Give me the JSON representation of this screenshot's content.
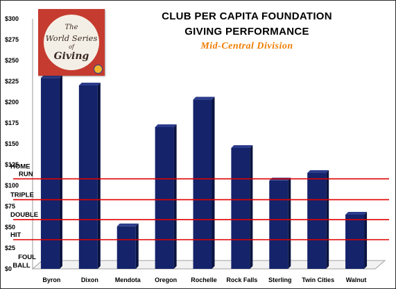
{
  "title_line1": "CLUB PER CAPITA FOUNDATION",
  "title_line2": "GIVING PERFORMANCE",
  "subtitle": "Mid-Central Division",
  "logo": {
    "line1": "The",
    "line2": "World Series",
    "line3": "of",
    "line4": "Giving"
  },
  "colors": {
    "bar": "#14236a",
    "bar_side": "#0a1440",
    "bar_top": "#2c3c8c",
    "level_line": "#e00000",
    "title": "#000000",
    "subtitle": "#f07d00",
    "logo_background": "#c63b2f"
  },
  "chart_data": {
    "type": "bar",
    "categories": [
      "Byron",
      "Dixon",
      "Mendota",
      "Oregon",
      "Rochelle",
      "Rock Falls",
      "Sterling",
      "Twin Cities",
      "Walnut"
    ],
    "values": [
      229,
      220,
      51,
      170,
      203,
      145,
      106,
      115,
      65
    ],
    "y_ticks": [
      "$0",
      "$25",
      "$50",
      "$75",
      "$100",
      "$125",
      "$150",
      "$175",
      "$200",
      "$225",
      "$250",
      "$275",
      "$300"
    ],
    "ylim": [
      0,
      300
    ],
    "grid": false,
    "reference_lines": [
      {
        "label": "HIT",
        "value": 35
      },
      {
        "label": "DOUBLE",
        "value": 59
      },
      {
        "label": "TRIPLE",
        "value": 83
      },
      {
        "label": "HOME RUN",
        "value": 108
      }
    ],
    "foul_ball_label": "FOUL BALL"
  }
}
